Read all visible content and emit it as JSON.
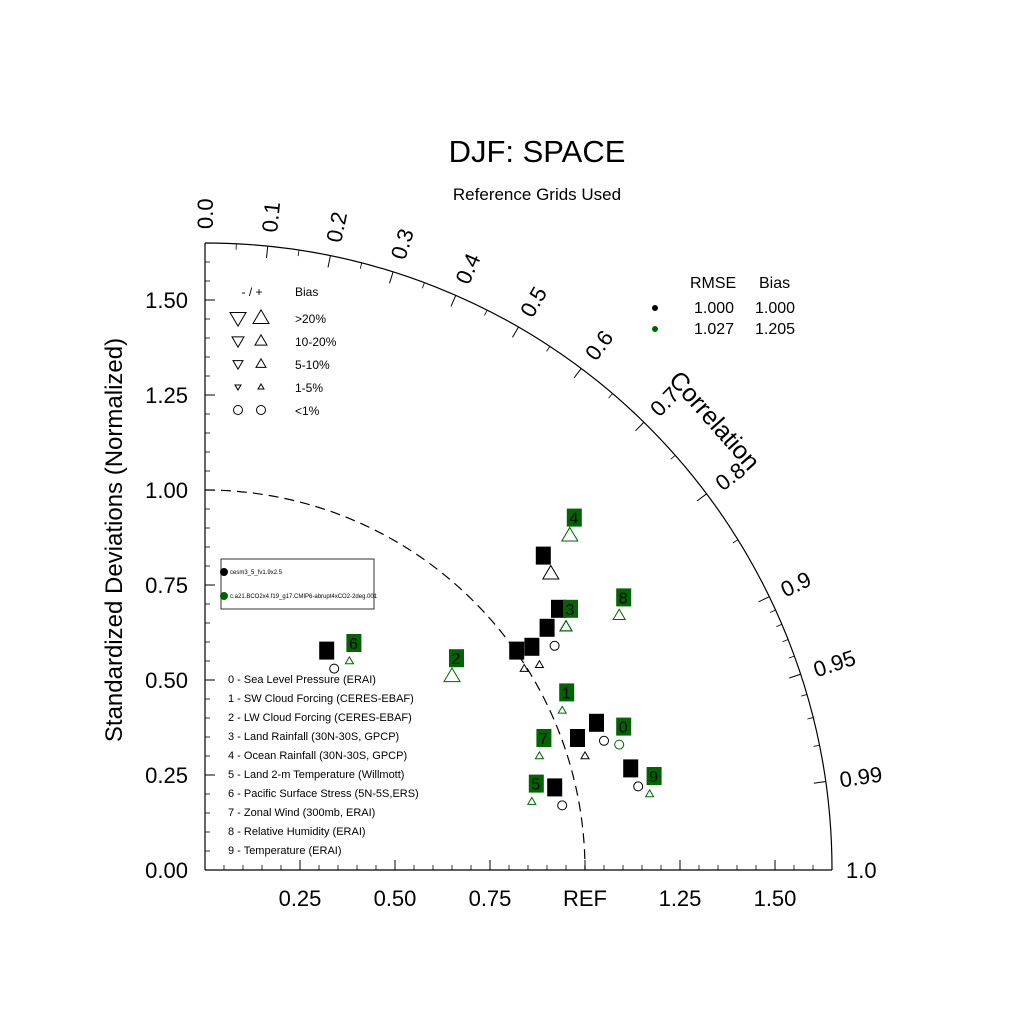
{
  "chart_data": {
    "type": "scatter",
    "diagram": "taylor",
    "title": "DJF: SPACE",
    "subtitle": "Reference Grids Used",
    "ylabel": "Standardized Deviations (Normalized)",
    "correlation_label": "Correlation",
    "ref_label": "REF",
    "std_max": 1.65,
    "x_ticks": [
      "0.25",
      "0.50",
      "0.75",
      "REF",
      "1.25",
      "1.50"
    ],
    "y_ticks": [
      "0.00",
      "0.25",
      "0.50",
      "0.75",
      "1.00",
      "1.25",
      "1.50"
    ],
    "corr_ticks": [
      "0.0",
      "0.1",
      "0.2",
      "0.3",
      "0.4",
      "0.5",
      "0.6",
      "0.7",
      "0.8",
      "0.9",
      "0.95",
      "0.99",
      "1.0"
    ],
    "bias_legend": {
      "header_sign": "- / +",
      "header_bias": "Bias",
      "rows": [
        ">20%",
        "10-20%",
        "5-10%",
        "1-5%",
        "<1%"
      ]
    },
    "rmse_legend": {
      "header_rmse": "RMSE",
      "header_bias": "Bias",
      "rows": [
        {
          "rmse": "1.000",
          "bias": "1.000",
          "color": "#000000"
        },
        {
          "rmse": "1.027",
          "bias": "1.205",
          "color": "#006400"
        }
      ]
    },
    "case_legend": [
      {
        "name": "cesm3_5_fv1.9x2.5",
        "color": "#000000"
      },
      {
        "name": "c.a21.BCO2x4.f19_g17.CMIP6-abrupt4xCO2-2deg.001",
        "color": "#006400"
      }
    ],
    "variables": [
      "0 - Sea Level Pressure (ERAI)",
      "1 - SW Cloud Forcing (CERES-EBAF)",
      "2 - LW Cloud Forcing (CERES-EBAF)",
      "3 - Land Rainfall (30N-30S, GPCP)",
      "4 - Ocean Rainfall (30N-30S, GPCP)",
      "5 - Land 2-m Temperature (Willmott)",
      "6 - Pacific Surface Stress (5N-5S,ERS)",
      "7 - Zonal Wind (300mb, ERAI)",
      "8 - Relative Humidity (ERAI)",
      "9 - Temperature (ERAI)"
    ],
    "series": [
      {
        "name": "cesm3_5_fv1.9x2.5",
        "color": "#000000",
        "points": [
          {
            "id": "0",
            "x": 1.05,
            "y": 0.34,
            "marker": "circle"
          },
          {
            "id": "1",
            "x": 0.84,
            "y": 0.53,
            "marker": "tri-up-s"
          },
          {
            "id": "2",
            "x": 0.92,
            "y": 0.59,
            "marker": "circle"
          },
          {
            "id": "3",
            "x": 0.95,
            "y": 0.64,
            "marker": "tri-up-m"
          },
          {
            "id": "4",
            "x": 0.91,
            "y": 0.78,
            "marker": "tri-up-l"
          },
          {
            "id": "5",
            "x": 0.94,
            "y": 0.17,
            "marker": "circle"
          },
          {
            "id": "6",
            "x": 0.34,
            "y": 0.53,
            "marker": "circle"
          },
          {
            "id": "7",
            "x": 1.0,
            "y": 0.3,
            "marker": "tri-up-s"
          },
          {
            "id": "8",
            "x": 0.88,
            "y": 0.54,
            "marker": "tri-up-s"
          },
          {
            "id": "9",
            "x": 1.14,
            "y": 0.22,
            "marker": "circle"
          }
        ]
      },
      {
        "name": "c.a21.BCO2x4.f19_g17.CMIP6-abrupt4xCO2-2deg.001",
        "color": "#006400",
        "points": [
          {
            "id": "0",
            "x": 1.09,
            "y": 0.33,
            "marker": "circle"
          },
          {
            "id": "1",
            "x": 0.94,
            "y": 0.42,
            "marker": "tri-up-s"
          },
          {
            "id": "2",
            "x": 0.65,
            "y": 0.51,
            "marker": "tri-up-l"
          },
          {
            "id": "3",
            "x": 0.95,
            "y": 0.64,
            "marker": "tri-up-m"
          },
          {
            "id": "4",
            "x": 0.96,
            "y": 0.88,
            "marker": "tri-up-l"
          },
          {
            "id": "5",
            "x": 0.86,
            "y": 0.18,
            "marker": "tri-up-s"
          },
          {
            "id": "6",
            "x": 0.38,
            "y": 0.55,
            "marker": "tri-up-s"
          },
          {
            "id": "7",
            "x": 0.88,
            "y": 0.3,
            "marker": "tri-up-s"
          },
          {
            "id": "8",
            "x": 1.09,
            "y": 0.67,
            "marker": "tri-up-m"
          },
          {
            "id": "9",
            "x": 1.17,
            "y": 0.2,
            "marker": "tri-up-s"
          }
        ]
      }
    ]
  }
}
